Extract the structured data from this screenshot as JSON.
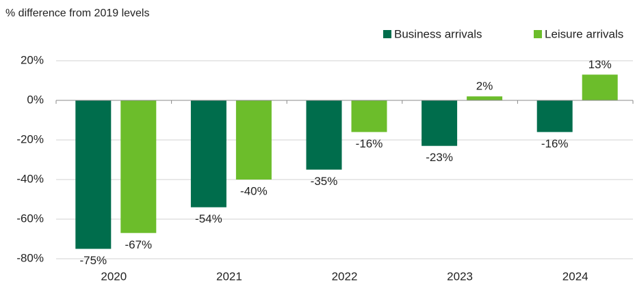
{
  "chart_data": {
    "type": "bar",
    "title": "% difference from 2019 levels",
    "categories": [
      "2020",
      "2021",
      "2022",
      "2023",
      "2024"
    ],
    "series": [
      {
        "name": "Business arrivals",
        "color": "#006d4c",
        "values": [
          -75,
          -54,
          -35,
          -23,
          -16
        ],
        "value_labels": [
          "-75%",
          "-54%",
          "-35%",
          "-23%",
          "-16%"
        ]
      },
      {
        "name": "Leisure arrivals",
        "color": "#6cbd2b",
        "values": [
          -67,
          -40,
          -16,
          2,
          13
        ],
        "value_labels": [
          "-67%",
          "-40%",
          "-16%",
          "2%",
          "13%"
        ]
      }
    ],
    "ylim": [
      -80,
      20
    ],
    "yticks": [
      {
        "value": -80,
        "label": "-80%"
      },
      {
        "value": -60,
        "label": "-60%"
      },
      {
        "value": -40,
        "label": "-40%"
      },
      {
        "value": -20,
        "label": "-20%"
      },
      {
        "value": 0,
        "label": "0%"
      },
      {
        "value": 20,
        "label": "20%"
      }
    ],
    "grid": true,
    "legend": "top-right"
  }
}
